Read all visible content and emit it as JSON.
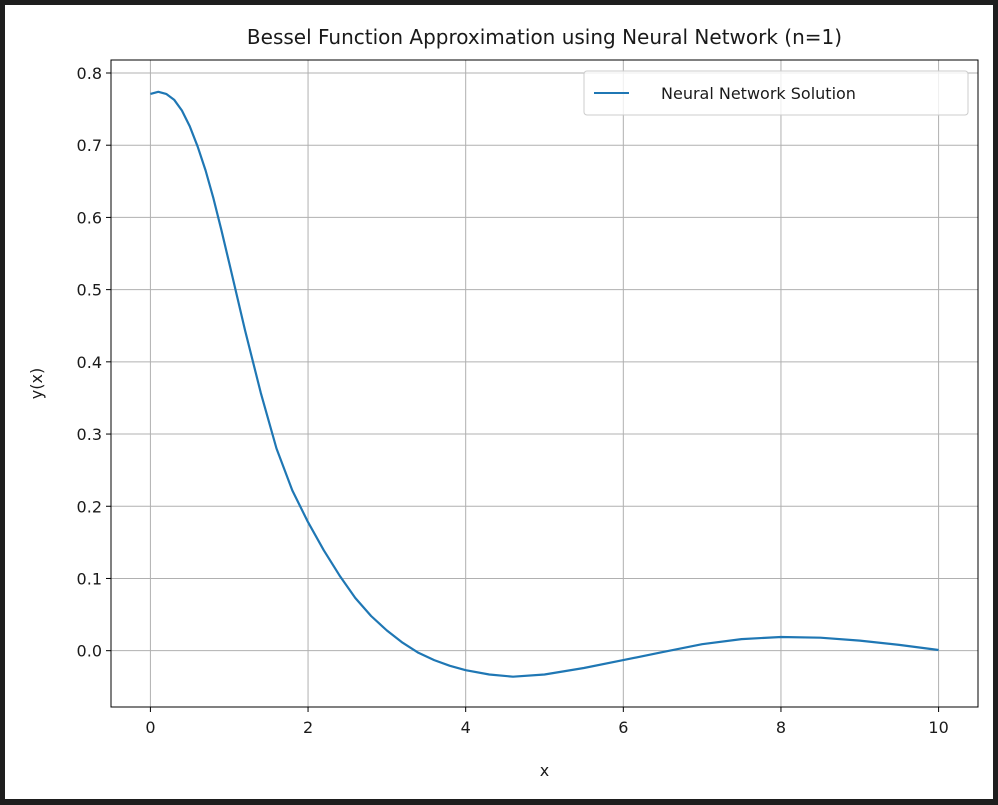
{
  "chart_data": {
    "type": "line",
    "title": "Bessel Function Approximation using Neural Network (n=1)",
    "xlabel": "x",
    "ylabel": "y(x)",
    "xlim": [
      -0.5,
      10.5
    ],
    "ylim": [
      -0.078,
      0.818
    ],
    "xticks": [
      0,
      2,
      4,
      6,
      8,
      10
    ],
    "xtick_labels": [
      "0",
      "2",
      "4",
      "6",
      "8",
      "10"
    ],
    "yticks": [
      0.0,
      0.1,
      0.2,
      0.3,
      0.4,
      0.5,
      0.6,
      0.7,
      0.8
    ],
    "ytick_labels": [
      "0.0",
      "0.1",
      "0.2",
      "0.3",
      "0.4",
      "0.5",
      "0.6",
      "0.7",
      "0.8"
    ],
    "grid": true,
    "legend_position": "upper right",
    "series": [
      {
        "name": "Neural Network Solution",
        "color": "#1f77b4",
        "x": [
          0.0,
          0.1,
          0.2,
          0.3,
          0.4,
          0.5,
          0.6,
          0.7,
          0.8,
          0.9,
          1.0,
          1.2,
          1.4,
          1.6,
          1.8,
          2.0,
          2.2,
          2.4,
          2.6,
          2.8,
          3.0,
          3.2,
          3.4,
          3.6,
          3.8,
          4.0,
          4.3,
          4.6,
          5.0,
          5.5,
          6.0,
          6.5,
          7.0,
          7.5,
          8.0,
          8.5,
          9.0,
          9.5,
          10.0
        ],
        "y": [
          0.771,
          0.774,
          0.771,
          0.763,
          0.748,
          0.726,
          0.698,
          0.665,
          0.626,
          0.583,
          0.537,
          0.444,
          0.357,
          0.28,
          0.222,
          0.178,
          0.139,
          0.104,
          0.073,
          0.048,
          0.028,
          0.011,
          -0.003,
          -0.013,
          -0.021,
          -0.027,
          -0.033,
          -0.036,
          -0.033,
          -0.024,
          -0.013,
          -0.002,
          0.009,
          0.016,
          0.019,
          0.018,
          0.014,
          0.008,
          0.001
        ]
      }
    ]
  }
}
